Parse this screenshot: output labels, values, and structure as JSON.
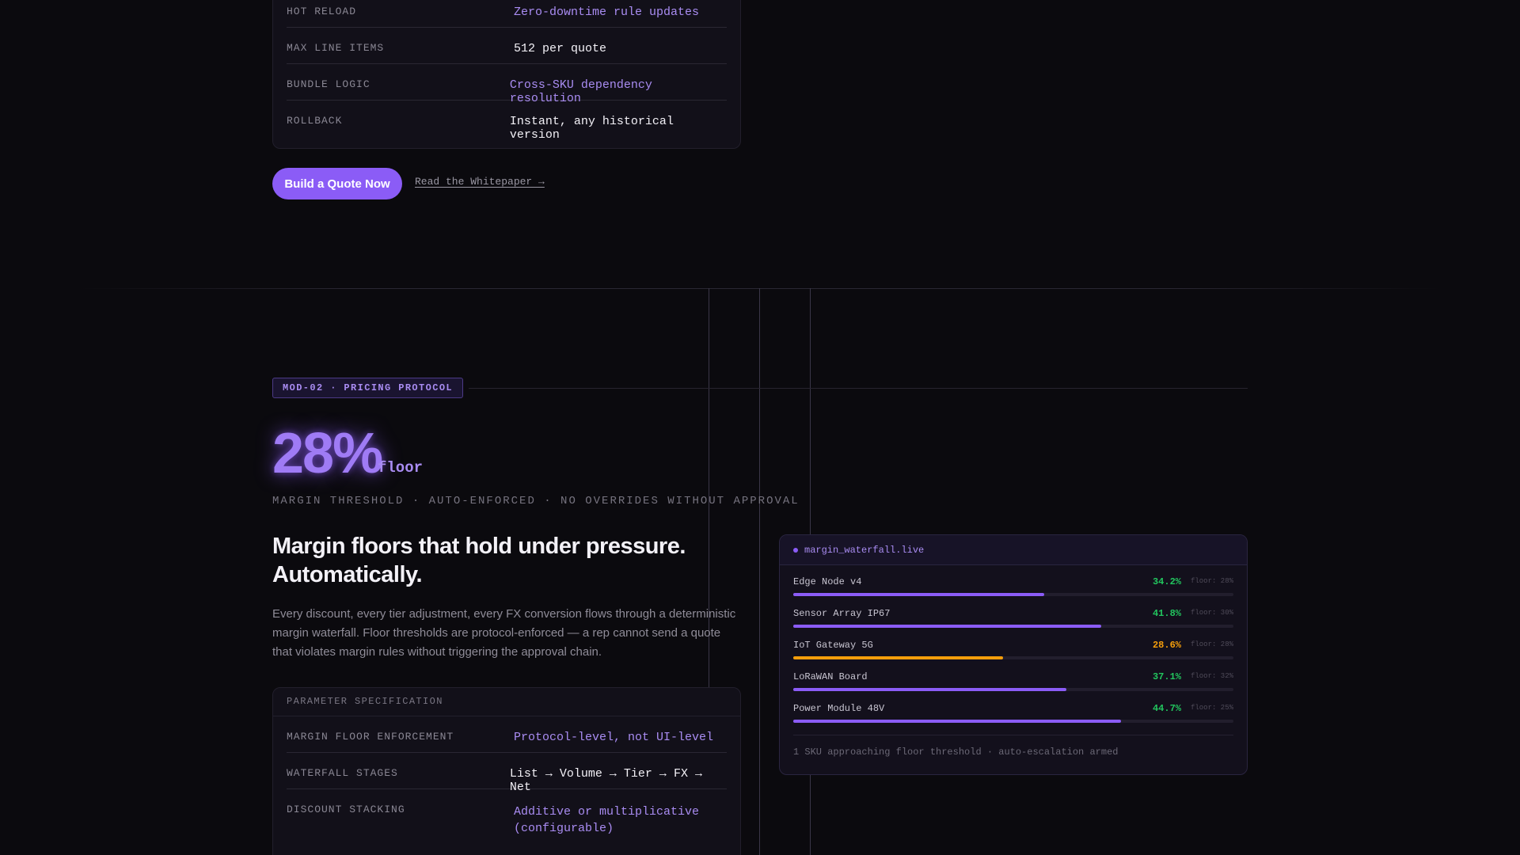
{
  "top_spec": {
    "rows": [
      {
        "key": "HOT RELOAD",
        "value": "Zero-downtime rule updates"
      },
      {
        "key": "MAX LINE ITEMS",
        "value": "512 per quote"
      },
      {
        "key": "BUNDLE LOGIC",
        "value": "Cross-SKU dependency resolution"
      },
      {
        "key": "ROLLBACK",
        "value": "Instant, any historical version"
      }
    ]
  },
  "cta": {
    "primary_label": "Build a Quote Now",
    "secondary_label": "Read the Whitepaper →"
  },
  "module": {
    "tag": "MOD-02 · PRICING PROTOCOL",
    "stat_value": "28%",
    "stat_unit": "floor",
    "threshold_line": "MARGIN THRESHOLD · AUTO-ENFORCED · NO OVERRIDES WITHOUT APPROVAL",
    "headline_line1": "Margin floors that hold under pressure.",
    "headline_line2": "Automatically.",
    "paragraph": "Every discount, every tier adjustment, every FX conversion flows through a deterministic margin waterfall. Floor thresholds are protocol-enforced — a rep cannot send a quote that violates margin rules without triggering the approval chain."
  },
  "param_spec": {
    "title": "PARAMETER SPECIFICATION",
    "rows": [
      {
        "key": "MARGIN FLOOR ENFORCEMENT",
        "value": "Protocol-level, not UI-level"
      },
      {
        "key": "WATERFALL STAGES",
        "value": "List → Volume → Tier → FX → Net"
      },
      {
        "key": "DISCOUNT STACKING",
        "value": "Additive or multiplicative (configurable)"
      }
    ]
  },
  "waterfall": {
    "title": "margin_waterfall.live",
    "items": [
      {
        "name": "Edge Node v4",
        "pct": "34.2%",
        "floor": "floor: 28%",
        "level": 0.57,
        "status": "ok"
      },
      {
        "name": "Sensor Array IP67",
        "pct": "41.8%",
        "floor": "floor: 30%",
        "level": 0.7,
        "status": "ok"
      },
      {
        "name": "IoT Gateway 5G",
        "pct": "28.6%",
        "floor": "floor: 28%",
        "level": 0.477,
        "status": "warn"
      },
      {
        "name": "LoRaWAN Board",
        "pct": "37.1%",
        "floor": "floor: 32%",
        "level": 0.62,
        "status": "ok"
      },
      {
        "name": "Power Module 48V",
        "pct": "44.7%",
        "floor": "floor: 25%",
        "level": 0.745,
        "status": "ok"
      }
    ],
    "footer": "1 SKU approaching floor threshold · auto-escalation armed"
  },
  "colors": {
    "accent": "#8b5cf6",
    "ok": "#22c55e",
    "warn": "#f59e0b",
    "bar_ok": "#8b5cf6",
    "bar_warn": "#f59e0b"
  }
}
